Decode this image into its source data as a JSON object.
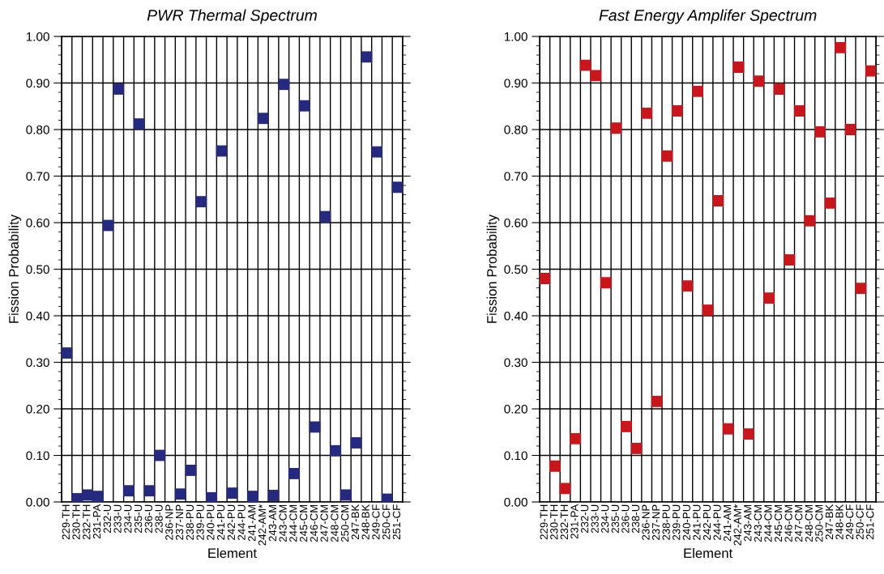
{
  "chart_data": [
    {
      "type": "scatter",
      "title": "PWR Thermal Spectrum",
      "xlabel": "Element",
      "ylabel": "Fission Probability",
      "marker": "square",
      "grid": true,
      "categories": [
        "229-TH",
        "230-TH",
        "232-TH",
        "231-PA",
        "232-U",
        "233-U",
        "234-U",
        "235-U",
        "236-U",
        "238-U",
        "236-NP",
        "237-NP",
        "238-PU",
        "239-PU",
        "240-PU",
        "241-PU",
        "242-PU",
        "244-PU",
        "241-AM",
        "242-AM*",
        "243-AM",
        "243-CM",
        "244-CM",
        "245-CM",
        "246-CM",
        "247-CM",
        "248-CM",
        "250-CM",
        "247-BK",
        "248-BK",
        "249-CF",
        "250-CF",
        "251-CF"
      ],
      "series": [
        {
          "color": "#262a7e",
          "values": [
            0.32,
            0.007,
            0.015,
            0.012,
            0.594,
            0.887,
            0.024,
            0.812,
            0.024,
            0.1,
            null,
            0.017,
            0.068,
            0.645,
            0.009,
            0.754,
            0.019,
            null,
            0.012,
            0.824,
            0.014,
            0.897,
            0.061,
            0.851,
            0.161,
            0.613,
            0.11,
            0.015,
            0.127,
            0.956,
            0.752,
            0.006,
            0.676
          ]
        }
      ],
      "ylim": [
        0,
        1
      ],
      "yticks": [
        {
          "value": 0,
          "label": "0.00"
        },
        {
          "value": 0.1,
          "label": "0.10"
        },
        {
          "value": 0.2,
          "label": "0.20"
        },
        {
          "value": 0.3,
          "label": "0.30"
        },
        {
          "value": 0.4,
          "label": "0.40"
        },
        {
          "value": 0.5,
          "label": "0.50"
        },
        {
          "value": 0.6,
          "label": "0.60"
        },
        {
          "value": 0.7,
          "label": "0.70"
        },
        {
          "value": 0.8,
          "label": "0.80"
        },
        {
          "value": 0.9,
          "label": "0.90"
        },
        {
          "value": 1,
          "label": "1.00"
        }
      ]
    },
    {
      "type": "scatter",
      "title": "Fast Energy Amplifer Spectrum",
      "xlabel": "Element",
      "ylabel": "Fission Probability",
      "marker": "square",
      "grid": true,
      "categories": [
        "229-TH",
        "230-TH",
        "232-TH",
        "231-PA",
        "232-U",
        "233-U",
        "234-U",
        "235-U",
        "236-U",
        "238-U",
        "236-NP",
        "237-NP",
        "238-PU",
        "239-PU",
        "240-PU",
        "241-PU",
        "242-PU",
        "244-PU",
        "241-AM",
        "242-AM*",
        "243-AM",
        "243-CM",
        "244-CM",
        "245-CM",
        "246-CM",
        "247-CM",
        "248-CM",
        "250-CM",
        "247-BK",
        "248-BK",
        "249-CF",
        "250-CF",
        "251-CF"
      ],
      "series": [
        {
          "color": "#c8161d",
          "values": [
            0.48,
            0.077,
            0.029,
            0.136,
            0.938,
            0.916,
            0.471,
            0.803,
            0.162,
            0.115,
            0.835,
            0.216,
            0.743,
            0.84,
            0.464,
            0.882,
            0.412,
            0.647,
            0.157,
            0.934,
            0.146,
            0.904,
            0.438,
            0.887,
            0.52,
            0.84,
            0.604,
            0.795,
            0.642,
            0.976,
            0.8,
            0.459,
            0.926
          ]
        }
      ],
      "ylim": [
        0,
        1
      ],
      "yticks": [
        {
          "value": 0,
          "label": "0.00"
        },
        {
          "value": 0.1,
          "label": "0.10"
        },
        {
          "value": 0.2,
          "label": "0.20"
        },
        {
          "value": 0.3,
          "label": "0.30"
        },
        {
          "value": 0.4,
          "label": "0.40"
        },
        {
          "value": 0.5,
          "label": "0.50"
        },
        {
          "value": 0.6,
          "label": "0.60"
        },
        {
          "value": 0.7,
          "label": "0.70"
        },
        {
          "value": 0.8,
          "label": "0.80"
        },
        {
          "value": 0.9,
          "label": "0.90"
        },
        {
          "value": 1,
          "label": "1.00"
        }
      ]
    }
  ]
}
